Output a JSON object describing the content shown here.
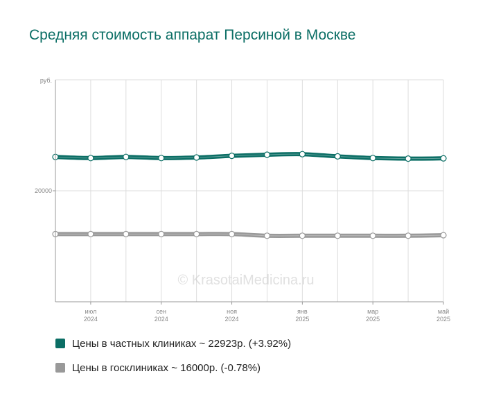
{
  "title": "Средняя стоимость аппарат Персиной в Москве",
  "watermark": "© KrasotaiMedicina.ru",
  "colors": {
    "private": "#0b6e65",
    "public": "#999999",
    "grid": "#dddddd",
    "axis": "#999999"
  },
  "chart_data": {
    "type": "line",
    "y_unit": "руб.",
    "ylim": [
      10000,
      30000
    ],
    "yticks": [
      {
        "value": 20000,
        "label": "20000"
      }
    ],
    "xlim": [
      0,
      11
    ],
    "xticks": [
      {
        "x": 1,
        "month": "июл",
        "year": "2024"
      },
      {
        "x": 3,
        "month": "сен",
        "year": "2024"
      },
      {
        "x": 5,
        "month": "ноя",
        "year": "2024"
      },
      {
        "x": 7,
        "month": "янв",
        "year": "2025"
      },
      {
        "x": 9,
        "month": "мар",
        "year": "2025"
      },
      {
        "x": 11,
        "month": "май",
        "year": "2025"
      }
    ],
    "grid": true,
    "series": [
      {
        "name": "Цены в частных клиниках ~ 22923р. (+3.92%)",
        "color": "#0b6e65",
        "x": [
          0,
          1,
          2,
          3,
          4,
          5,
          6,
          7,
          8,
          9,
          10,
          11
        ],
        "values": [
          23050,
          22950,
          23050,
          22950,
          23000,
          23150,
          23250,
          23300,
          23100,
          22950,
          22900,
          22923
        ]
      },
      {
        "name": "Цены в госклиниках ~ 16000р. (-0.78%)",
        "color": "#999999",
        "x": [
          0,
          1,
          2,
          3,
          4,
          5,
          6,
          7,
          8,
          9,
          10,
          11
        ],
        "values": [
          16100,
          16100,
          16100,
          16100,
          16100,
          16100,
          15950,
          15950,
          15950,
          15950,
          15950,
          16000
        ]
      }
    ]
  },
  "legend": [
    {
      "label": "Цены в частных клиниках ~ 22923р. (+3.92%)",
      "color": "#0b6e65"
    },
    {
      "label": "Цены в госклиниках ~ 16000р. (-0.78%)",
      "color": "#999999"
    }
  ]
}
